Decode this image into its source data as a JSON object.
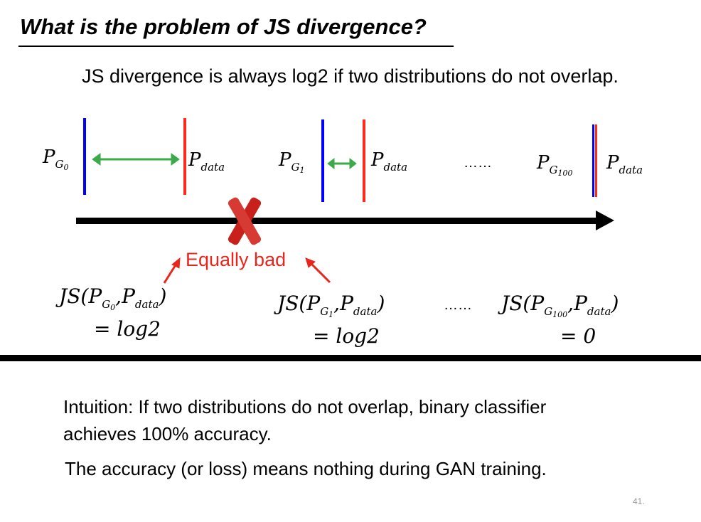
{
  "title": "What is the problem of JS divergence?",
  "subtitle": "JS divergence is always log2 if two distributions do not overlap.",
  "labels": {
    "p": "P",
    "g0": "G",
    "g0sub": "0",
    "g1": "G",
    "g1sub": "1",
    "g100": "G",
    "g100sub": "100",
    "data": "data",
    "dots": "……"
  },
  "annotation": "Equally bad",
  "js": [
    {
      "prefix": "JS(",
      "p": "P",
      "g": "G",
      "gsub": "0",
      "comma": ",",
      "data": "data",
      "close": ")",
      "result": "= log2"
    },
    {
      "prefix": "JS(",
      "p": "P",
      "g": "G",
      "gsub": "1",
      "comma": ",",
      "data": "data",
      "close": ")",
      "result": "= log2"
    },
    {
      "prefix": "JS(",
      "p": "P",
      "g": "G",
      "gsub": "100",
      "comma": ",",
      "data": "data",
      "close": ")",
      "result": "= 0"
    }
  ],
  "js_dots": "……",
  "intuition_line1": "Intuition: If two distributions do not overlap, binary classifier",
  "intuition_line2": "achieves 100% accuracy.",
  "conclusion": "The accuracy (or loss) means nothing during GAN training.",
  "page_number": "41.",
  "colors": {
    "blue": "#0000ff",
    "red": "#ff2a1a",
    "green": "#3daa4a",
    "annotation": "#e8261c"
  }
}
